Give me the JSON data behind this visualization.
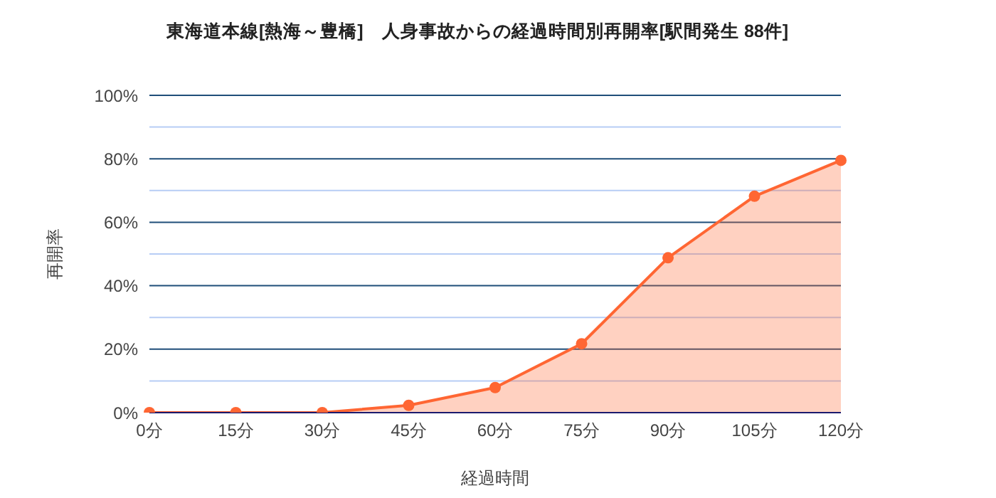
{
  "chart_data": {
    "type": "area",
    "title": "東海道本線[熱海～豊橋]　人身事故からの経過時間別再開率[駅間発生 88件]",
    "xlabel": "経過時間",
    "ylabel": "再開率",
    "categories": [
      "0分",
      "15分",
      "30分",
      "45分",
      "60分",
      "75分",
      "90分",
      "105分",
      "120分"
    ],
    "series": [
      {
        "color": "#ff6633",
        "values": [
          0,
          0,
          0,
          2.3,
          7.9,
          21.7,
          48.8,
          68.2,
          79.5
        ]
      }
    ],
    "ylim": [
      0,
      100
    ],
    "yticks": [
      {
        "value": 0,
        "label": "0%"
      },
      {
        "value": 10,
        "label": null
      },
      {
        "value": 20,
        "label": "20%"
      },
      {
        "value": 30,
        "label": null
      },
      {
        "value": 40,
        "label": "40%"
      },
      {
        "value": 50,
        "label": null
      },
      {
        "value": 60,
        "label": "60%"
      },
      {
        "value": 70,
        "label": null
      },
      {
        "value": 80,
        "label": "80%"
      },
      {
        "value": 90,
        "label": null
      },
      {
        "value": 100,
        "label": "100%"
      }
    ],
    "grid": "y",
    "marker": "circle",
    "line_style": "solid"
  }
}
